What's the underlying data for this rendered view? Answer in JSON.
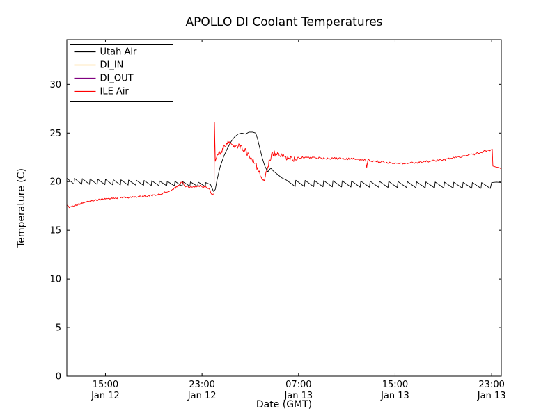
{
  "chart_data": {
    "type": "line",
    "title": "APOLLO DI Coolant Temperatures",
    "xlabel": "Date (GMT)",
    "ylabel": "Temperature (C)",
    "x_unit": "hours since Jan 12 00:00 GMT",
    "xlim": [
      11.8,
      47.8
    ],
    "ylim": [
      0,
      34.6
    ],
    "grid": false,
    "yticks": [
      0,
      5,
      10,
      15,
      20,
      25,
      30
    ],
    "xticks": [
      {
        "x": 15,
        "time": "15:00",
        "date": "Jan 12"
      },
      {
        "x": 23,
        "time": "23:00",
        "date": "Jan 12"
      },
      {
        "x": 31,
        "time": "07:00",
        "date": "Jan 13"
      },
      {
        "x": 39,
        "time": "15:00",
        "date": "Jan 13"
      },
      {
        "x": 47,
        "time": "23:00",
        "date": "Jan 13"
      }
    ],
    "legend": {
      "position": "upper left",
      "items": [
        {
          "label": "Utah Air",
          "color": "#000000"
        },
        {
          "label": "DI_IN",
          "color": "#ffa500"
        },
        {
          "label": "DI_OUT",
          "color": "#800080"
        },
        {
          "label": "ILE Air",
          "color": "#ff0000"
        }
      ]
    },
    "series": [
      {
        "name": "Utah Air",
        "color": "#000000",
        "segments": [
          {
            "sawtooth": {
              "from": 11.8,
              "to": 23.3,
              "period": 0.64,
              "high_start": 20.35,
              "high_end": 19.95,
              "low_start": 19.75,
              "low_end": 19.5
            }
          },
          {
            "points": [
              [
                23.3,
                19.9
              ],
              [
                23.7,
                19.7
              ],
              [
                23.95,
                19.0
              ],
              [
                24.1,
                19.2
              ],
              [
                24.25,
                20.2
              ],
              [
                24.5,
                21.5
              ],
              [
                24.8,
                22.6
              ],
              [
                25.1,
                23.4
              ],
              [
                25.4,
                24.1
              ],
              [
                25.7,
                24.6
              ],
              [
                26.0,
                24.9
              ],
              [
                26.3,
                25.0
              ],
              [
                26.6,
                24.9
              ],
              [
                26.9,
                25.1
              ],
              [
                27.2,
                25.1
              ],
              [
                27.45,
                25.0
              ],
              [
                27.6,
                24.4
              ],
              [
                27.8,
                23.4
              ],
              [
                28.0,
                22.4
              ],
              [
                28.2,
                21.6
              ],
              [
                28.45,
                21.0
              ],
              [
                28.7,
                21.4
              ],
              [
                28.9,
                21.1
              ],
              [
                29.2,
                20.8
              ],
              [
                29.6,
                20.4
              ],
              [
                30.0,
                20.15
              ]
            ]
          },
          {
            "sawtooth": {
              "from": 30.0,
              "to": 47.0,
              "period": 0.77,
              "high_start": 20.15,
              "high_end": 19.9,
              "low_start": 19.5,
              "low_end": 19.3
            }
          },
          {
            "points": [
              [
                47.0,
                19.9
              ],
              [
                47.4,
                19.95
              ],
              [
                47.8,
                19.9
              ]
            ]
          }
        ]
      },
      {
        "name": "DI_IN",
        "color": "#ffa500",
        "segments": []
      },
      {
        "name": "DI_OUT",
        "color": "#800080",
        "segments": []
      },
      {
        "name": "ILE Air",
        "color": "#ff0000",
        "segments": [
          {
            "noisy": {
              "amp": 0.09,
              "step": 0.06,
              "points": [
                [
                  11.8,
                  17.6
                ],
                [
                  12.0,
                  17.35
                ],
                [
                  12.2,
                  17.45
                ],
                [
                  12.6,
                  17.6
                ],
                [
                  13.0,
                  17.75
                ],
                [
                  13.6,
                  17.95
                ],
                [
                  14.4,
                  18.15
                ],
                [
                  15.2,
                  18.25
                ],
                [
                  16.2,
                  18.35
                ],
                [
                  17.2,
                  18.4
                ],
                [
                  18.2,
                  18.5
                ],
                [
                  19.0,
                  18.6
                ],
                [
                  19.6,
                  18.75
                ],
                [
                  20.2,
                  19.0
                ],
                [
                  20.8,
                  19.35
                ],
                [
                  21.2,
                  19.8
                ],
                [
                  21.35,
                  20.0
                ],
                [
                  21.55,
                  19.55
                ],
                [
                  21.9,
                  19.45
                ],
                [
                  22.4,
                  19.5
                ],
                [
                  22.9,
                  19.55
                ],
                [
                  23.3,
                  19.45
                ],
                [
                  23.6,
                  19.2
                ],
                [
                  23.85,
                  18.65
                ],
                [
                  24.0,
                  18.7
                ]
              ]
            }
          },
          {
            "points": [
              [
                24.03,
                26.1
              ],
              [
                24.1,
                22.1
              ]
            ]
          },
          {
            "noisy": {
              "amp": 0.28,
              "step": 0.05,
              "points": [
                [
                  24.15,
                  22.3
                ],
                [
                  24.4,
                  22.9
                ],
                [
                  24.7,
                  23.3
                ],
                [
                  25.0,
                  23.8
                ],
                [
                  25.2,
                  24.1
                ],
                [
                  25.45,
                  23.9
                ],
                [
                  25.7,
                  23.6
                ],
                [
                  26.0,
                  23.7
                ],
                [
                  26.3,
                  23.5
                ],
                [
                  26.6,
                  23.2
                ],
                [
                  26.9,
                  22.7
                ],
                [
                  27.2,
                  22.1
                ],
                [
                  27.5,
                  21.6
                ],
                [
                  27.75,
                  20.9
                ],
                [
                  27.95,
                  20.3
                ],
                [
                  28.1,
                  19.95
                ],
                [
                  28.3,
                  20.9
                ],
                [
                  28.55,
                  22.0
                ],
                [
                  28.8,
                  22.8
                ],
                [
                  29.0,
                  22.9
                ],
                [
                  29.3,
                  22.75
                ],
                [
                  29.7,
                  22.6
                ],
                [
                  30.2,
                  22.45
                ],
                [
                  30.6,
                  22.3
                ],
                [
                  30.9,
                  22.3
                ]
              ]
            }
          },
          {
            "noisy": {
              "amp": 0.11,
              "step": 0.08,
              "points": [
                [
                  30.9,
                  22.5
                ],
                [
                  31.4,
                  22.5
                ],
                [
                  32.0,
                  22.45
                ],
                [
                  33.0,
                  22.4
                ],
                [
                  34.0,
                  22.4
                ],
                [
                  35.0,
                  22.35
                ],
                [
                  36.0,
                  22.3
                ],
                [
                  36.55,
                  22.25
                ],
                [
                  36.65,
                  21.55
                ],
                [
                  36.75,
                  22.2
                ],
                [
                  37.3,
                  22.1
                ],
                [
                  38.0,
                  22.0
                ],
                [
                  38.7,
                  21.9
                ],
                [
                  39.4,
                  21.85
                ],
                [
                  40.2,
                  21.9
                ],
                [
                  41.0,
                  22.0
                ],
                [
                  42.0,
                  22.1
                ],
                [
                  43.0,
                  22.25
                ],
                [
                  44.0,
                  22.45
                ],
                [
                  45.0,
                  22.7
                ],
                [
                  45.8,
                  22.9
                ],
                [
                  46.4,
                  23.1
                ],
                [
                  46.8,
                  23.25
                ],
                [
                  47.0,
                  23.3
                ]
              ]
            }
          },
          {
            "points": [
              [
                47.05,
                23.35
              ],
              [
                47.1,
                21.6
              ],
              [
                47.35,
                21.5
              ],
              [
                47.6,
                21.45
              ],
              [
                47.8,
                21.3
              ]
            ]
          }
        ]
      }
    ]
  }
}
